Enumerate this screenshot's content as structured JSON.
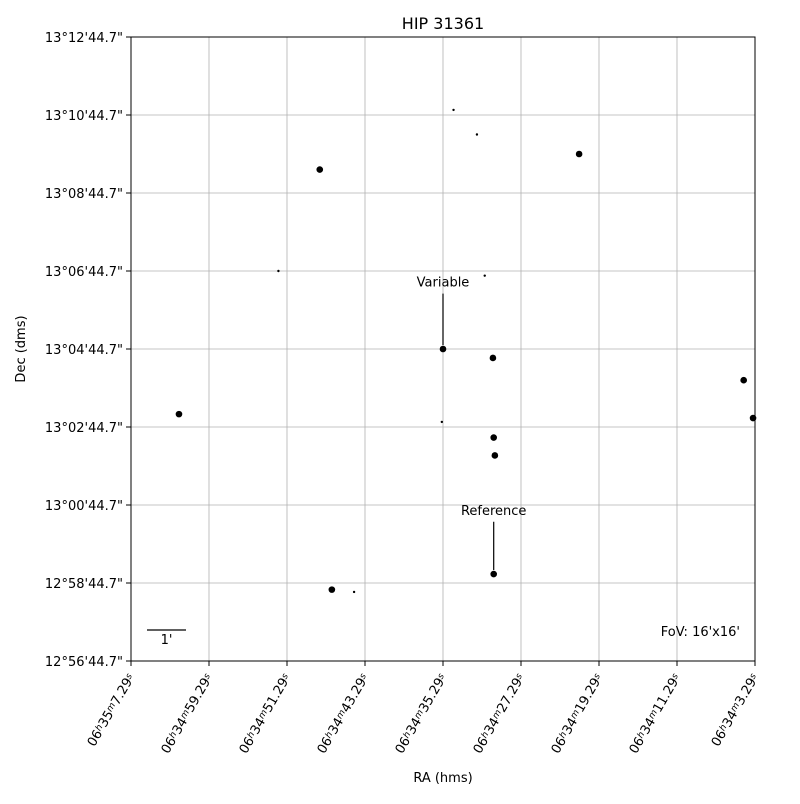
{
  "chart_data": {
    "type": "scatter",
    "title": "HIP 31361",
    "xlabel": "RA (hms)",
    "ylabel": "Dec (dms)",
    "xlim": [
      -8,
      8
    ],
    "ylim": [
      -8,
      8
    ],
    "grid": true,
    "x_ticks": [
      {
        "value": -8,
        "h": "06",
        "m": "35",
        "s": "7.29"
      },
      {
        "value": -6,
        "h": "06",
        "m": "34",
        "s": "59.29"
      },
      {
        "value": -4,
        "h": "06",
        "m": "34",
        "s": "51.29"
      },
      {
        "value": -2,
        "h": "06",
        "m": "34",
        "s": "43.29"
      },
      {
        "value": 0,
        "h": "06",
        "m": "34",
        "s": "35.29"
      },
      {
        "value": 2,
        "h": "06",
        "m": "34",
        "s": "27.29"
      },
      {
        "value": 4,
        "h": "06",
        "m": "34",
        "s": "19.29"
      },
      {
        "value": 6,
        "h": "06",
        "m": "34",
        "s": "11.29"
      },
      {
        "value": 8,
        "h": "06",
        "m": "34",
        "s": "3.29"
      }
    ],
    "y_ticks": [
      {
        "value": 8,
        "label": "13°12'44.7\""
      },
      {
        "value": 6,
        "label": "13°10'44.7\""
      },
      {
        "value": 4,
        "label": "13°08'44.7\""
      },
      {
        "value": 2,
        "label": "13°06'44.7\""
      },
      {
        "value": 0,
        "label": "13°04'44.7\""
      },
      {
        "value": -2,
        "label": "13°02'44.7\""
      },
      {
        "value": -4,
        "label": "13°00'44.7\""
      },
      {
        "value": -6,
        "label": "12°58'44.7\""
      },
      {
        "value": -8,
        "label": "12°56'44.7\""
      }
    ],
    "stars": [
      {
        "x": 0.27,
        "y": 6.13,
        "size": 1.5
      },
      {
        "x": 0.87,
        "y": 5.5,
        "size": 1.5
      },
      {
        "x": 3.49,
        "y": 5.0,
        "size": 4
      },
      {
        "x": -3.16,
        "y": 4.6,
        "size": 4
      },
      {
        "x": -4.22,
        "y": 2.0,
        "size": 1.5
      },
      {
        "x": 1.07,
        "y": 1.88,
        "size": 1.5
      },
      {
        "x": 0.0,
        "y": 0.0,
        "size": 4
      },
      {
        "x": 1.28,
        "y": -0.23,
        "size": 4
      },
      {
        "x": 7.71,
        "y": -0.8,
        "size": 4
      },
      {
        "x": -6.77,
        "y": -1.67,
        "size": 4
      },
      {
        "x": -0.03,
        "y": -1.87,
        "size": 1.5
      },
      {
        "x": 7.95,
        "y": -1.77,
        "size": 4
      },
      {
        "x": 1.3,
        "y": -2.27,
        "size": 4
      },
      {
        "x": 1.33,
        "y": -2.73,
        "size": 4
      },
      {
        "x": 1.3,
        "y": -5.77,
        "size": 4
      },
      {
        "x": -2.85,
        "y": -6.17,
        "size": 4
      },
      {
        "x": -2.28,
        "y": -6.23,
        "size": 1.5
      }
    ],
    "annotations": [
      {
        "text": "Variable",
        "target_x": 0.0,
        "target_y": 0.0,
        "text_y": 1.6
      },
      {
        "text": "Reference",
        "target_x": 1.3,
        "target_y": -5.77,
        "text_y": -4.25
      }
    ],
    "scale_bar": {
      "label": "1'",
      "length": 1
    },
    "fov_label": "FoV: 16'x16'"
  }
}
